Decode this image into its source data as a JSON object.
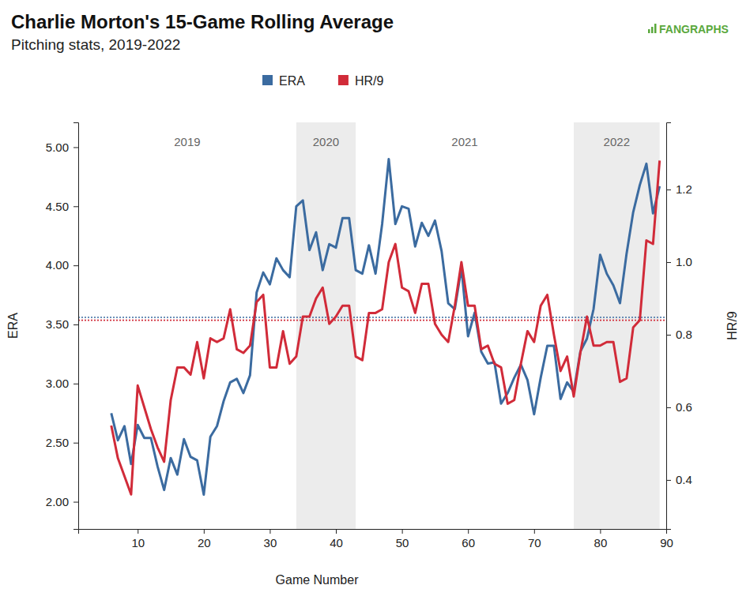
{
  "chart_data": {
    "type": "line",
    "title": "Charlie Morton's 15-Game Rolling Average",
    "subtitle": "Pitching stats, 2019-2022",
    "logo": "FANGRAPHS",
    "xlabel": "Game Number",
    "ylabel": "ERA",
    "y2label": "HR/9",
    "xlim": [
      1,
      90
    ],
    "xticks": [
      10,
      20,
      30,
      40,
      50,
      60,
      70,
      80,
      90
    ],
    "ylim": [
      1.77,
      5.21
    ],
    "yticks": [
      {
        "value": 2,
        "label": "2.00"
      },
      {
        "value": 2.5,
        "label": "2.50"
      },
      {
        "value": 3,
        "label": "3.00"
      },
      {
        "value": 3.5,
        "label": "3.50"
      },
      {
        "value": 4,
        "label": "4.00"
      },
      {
        "value": 4.5,
        "label": "4.50"
      },
      {
        "value": 5,
        "label": "5.00"
      }
    ],
    "y2lim": [
      0.265,
      1.385
    ],
    "y2ticks": [
      0.4,
      0.6,
      0.8,
      {
        "value": 1,
        "label": "1.0"
      },
      1.2
    ],
    "legend": "top",
    "periods": [
      {
        "label": "2019",
        "start": 1,
        "end": 34
      },
      {
        "label": "2020",
        "start": 34,
        "end": 43
      },
      {
        "label": "2021",
        "start": 43,
        "end": 76
      },
      {
        "label": "2022",
        "start": 76,
        "end": 89
      }
    ],
    "x": [
      6,
      7,
      8,
      9,
      10,
      11,
      12,
      13,
      14,
      15,
      16,
      17,
      18,
      19,
      20,
      21,
      22,
      23,
      24,
      25,
      26,
      27,
      28,
      29,
      30,
      31,
      32,
      33,
      34,
      35,
      36,
      37,
      38,
      39,
      40,
      41,
      42,
      43,
      44,
      45,
      46,
      47,
      48,
      49,
      50,
      51,
      52,
      53,
      54,
      55,
      56,
      57,
      58,
      59,
      60,
      61,
      62,
      63,
      64,
      65,
      66,
      67,
      68,
      69,
      70,
      71,
      72,
      73,
      74,
      75,
      76,
      77,
      78,
      79,
      80,
      81,
      82,
      83,
      84,
      85,
      86,
      87,
      88,
      89
    ],
    "series": [
      {
        "name": "ERA",
        "color": "#3b6ba0",
        "line_style": "solid",
        "average": 3.56,
        "values": [
          2.75,
          2.52,
          2.64,
          2.32,
          2.65,
          2.54,
          2.54,
          2.3,
          2.1,
          2.37,
          2.23,
          2.53,
          2.38,
          2.35,
          2.06,
          2.55,
          2.64,
          2.85,
          3.01,
          3.04,
          2.92,
          3.07,
          3.77,
          3.94,
          3.84,
          4.06,
          3.96,
          3.9,
          4.5,
          4.55,
          4.13,
          4.28,
          3.96,
          4.18,
          4.15,
          4.4,
          4.4,
          3.96,
          3.93,
          4.17,
          3.93,
          4.35,
          4.9,
          4.35,
          4.5,
          4.48,
          4.16,
          4.36,
          4.25,
          4.38,
          4.12,
          3.68,
          3.63,
          3.98,
          3.4,
          3.6,
          3.27,
          3.17,
          3.18,
          2.83,
          2.92,
          3.05,
          3.16,
          3.03,
          2.74,
          3.05,
          3.32,
          3.32,
          2.87,
          3.01,
          2.93,
          3.27,
          3.38,
          3.63,
          4.09,
          3.93,
          3.83,
          3.68,
          4.1,
          4.45,
          4.68,
          4.86,
          4.44,
          4.67
        ]
      },
      {
        "name": "HR/9",
        "color": "#d12b39",
        "line_style": "solid",
        "axis": "y2",
        "average": 0.84,
        "values": [
          0.55,
          0.46,
          0.41,
          0.36,
          0.66,
          0.6,
          0.54,
          0.49,
          0.45,
          0.62,
          0.71,
          0.71,
          0.69,
          0.78,
          0.68,
          0.79,
          0.78,
          0.79,
          0.87,
          0.76,
          0.75,
          0.77,
          0.89,
          0.91,
          0.71,
          0.71,
          0.81,
          0.72,
          0.74,
          0.85,
          0.85,
          0.9,
          0.93,
          0.83,
          0.85,
          0.88,
          0.88,
          0.74,
          0.73,
          0.86,
          0.86,
          0.87,
          1.0,
          1.05,
          0.93,
          0.92,
          0.86,
          0.94,
          0.94,
          0.83,
          0.8,
          0.78,
          0.88,
          1.0,
          0.88,
          0.88,
          0.76,
          0.77,
          0.72,
          0.71,
          0.61,
          0.62,
          0.72,
          0.81,
          0.78,
          0.88,
          0.91,
          0.8,
          0.7,
          0.74,
          0.63,
          0.75,
          0.85,
          0.77,
          0.77,
          0.78,
          0.78,
          0.67,
          0.68,
          0.82,
          0.84,
          1.06,
          1.05,
          1.28
        ]
      }
    ]
  }
}
